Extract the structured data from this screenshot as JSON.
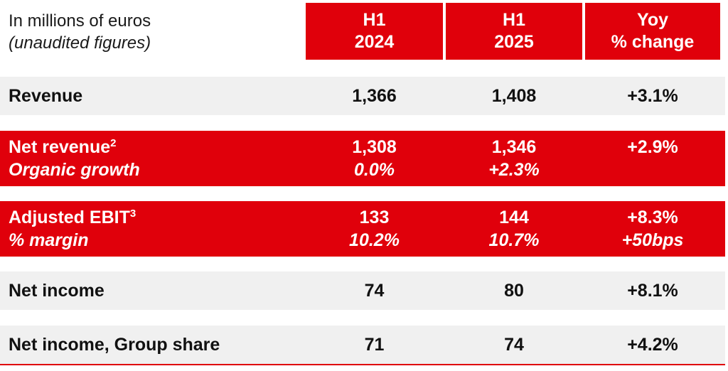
{
  "caption": {
    "line1": "In millions of euros",
    "line2": "(unaudited figures)"
  },
  "headers": [
    {
      "line1": "H1",
      "line2": "2024"
    },
    {
      "line1": "H1",
      "line2": "2025"
    },
    {
      "line1": "Yoy",
      "line2": "% change"
    }
  ],
  "rows": [
    {
      "label": "Revenue",
      "h1_2024": "1,366",
      "h1_2025": "1,408",
      "yoy": "+3.1%"
    },
    {
      "label": "Net revenue",
      "footnote": "2",
      "h1_2024": "1,308",
      "h1_2025": "1,346",
      "yoy": "+2.9%",
      "sub_label": "Organic growth",
      "sub_h1_2024": "0.0%",
      "sub_h1_2025": "+2.3%",
      "sub_yoy": ""
    },
    {
      "label": "Adjusted EBIT",
      "footnote": "3",
      "h1_2024": "133",
      "h1_2025": "144",
      "yoy": "+8.3%",
      "sub_label": "% margin",
      "sub_h1_2024": "10.2%",
      "sub_h1_2025": "10.7%",
      "sub_yoy": "+50bps"
    },
    {
      "label": "Net income",
      "h1_2024": "74",
      "h1_2025": "80",
      "yoy": "+8.1%"
    },
    {
      "label": "Net income, Group share",
      "h1_2024": "71",
      "h1_2025": "74",
      "yoy": "+4.2%"
    }
  ],
  "colors": {
    "accent_red": "#e0000b",
    "row_grey": "#f0f0f0",
    "text_dark": "#111111",
    "text_on_red": "#ffffff"
  }
}
